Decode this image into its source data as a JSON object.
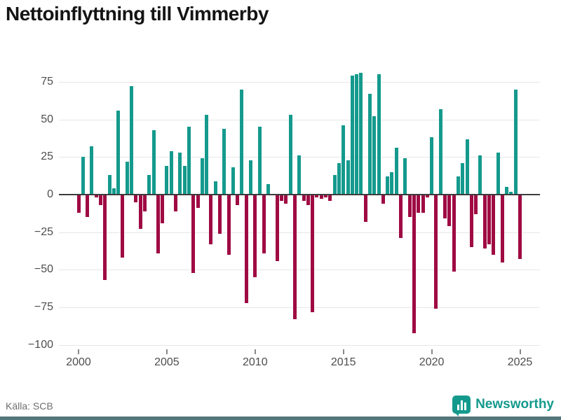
{
  "chart": {
    "title": "Nettoinflyttning till Vimmerby",
    "type": "bar",
    "frequency": "quarterly",
    "start_year": 2000,
    "start_quarter": 1,
    "positive_color": "#149a8d",
    "negative_color": "#9f0a43",
    "y_ticks": [
      75,
      50,
      25,
      0,
      -25,
      -50,
      -75,
      -100
    ],
    "x_ticks": [
      2000,
      2005,
      2010,
      2015,
      2020,
      2025
    ],
    "ylim": [
      -100,
      85
    ],
    "grid": true,
    "values": [
      -12,
      25,
      -15,
      32,
      -2,
      -7,
      -57,
      13,
      4,
      56,
      -42,
      22,
      72,
      -5,
      -23,
      -11,
      13,
      43,
      -39,
      -19,
      19,
      29,
      -11,
      28,
      19,
      45,
      -52,
      -9,
      24,
      53,
      -33,
      9,
      -26,
      44,
      -40,
      18,
      -7,
      70,
      -72,
      23,
      -55,
      45,
      -39,
      7,
      0,
      -44,
      -4,
      -6,
      53,
      -83,
      26,
      -4,
      -7,
      -78,
      -2,
      -3,
      -2,
      -4,
      13,
      21,
      46,
      23,
      79,
      80,
      81,
      -18,
      67,
      52,
      80,
      -6,
      12,
      15,
      31,
      -29,
      24,
      -15,
      -92,
      -12,
      -12,
      -2,
      38,
      -76,
      57,
      -16,
      -21,
      -51,
      12,
      21,
      37,
      -35,
      -13,
      26,
      -36,
      -33,
      -40,
      28,
      -45,
      5,
      2,
      70,
      -43
    ]
  },
  "chart_data": {
    "type": "bar",
    "title": "Nettoinflyttning till Vimmerby",
    "xlabel": "",
    "ylabel": "",
    "x": "quarterly 2000Q1 - 2025Q1",
    "series": [
      {
        "name": "Nettoinflyttning",
        "year_values": {
          "2000": [
            -12,
            25,
            -15,
            32
          ],
          "2001": [
            -2,
            -7,
            -57,
            13
          ],
          "2002": [
            4,
            56,
            -42,
            22
          ],
          "2003": [
            72,
            -5,
            -23,
            -11
          ],
          "2004": [
            13,
            43,
            -39,
            -19
          ],
          "2005": [
            19,
            29,
            -11,
            28
          ],
          "2006": [
            19,
            45,
            -52,
            -9
          ],
          "2007": [
            24,
            53,
            -33,
            9
          ],
          "2008": [
            -26,
            44,
            -40,
            18
          ],
          "2009": [
            -7,
            70,
            -72,
            23
          ],
          "2010": [
            -55,
            45,
            -39,
            7
          ],
          "2011": [
            0,
            -44,
            -4,
            -6
          ],
          "2012": [
            53,
            -83,
            26,
            -4
          ],
          "2013": [
            -7,
            -78,
            -2,
            -3
          ],
          "2014": [
            -2,
            -4,
            13,
            21
          ],
          "2015": [
            46,
            23,
            79,
            80
          ],
          "2016": [
            81,
            -18,
            67,
            52
          ],
          "2017": [
            80,
            -6,
            12,
            15
          ],
          "2018": [
            31,
            -29,
            24,
            -15
          ],
          "2019": [
            -92,
            -12,
            -12,
            -2
          ],
          "2020": [
            38,
            -76,
            57,
            -16
          ],
          "2021": [
            -21,
            -51,
            12,
            21
          ],
          "2022": [
            37,
            -35,
            -13,
            26
          ],
          "2023": [
            -36,
            -33,
            -40,
            28
          ],
          "2024": [
            -45,
            5,
            2,
            70
          ],
          "2025": [
            -43
          ]
        }
      }
    ],
    "ylim": [
      -100,
      85
    ],
    "legend": "none",
    "grid": "horizontal"
  },
  "footer": {
    "source": "Källa: SCB",
    "brand": "Newsworthy",
    "brand_color": "#149a8d"
  }
}
